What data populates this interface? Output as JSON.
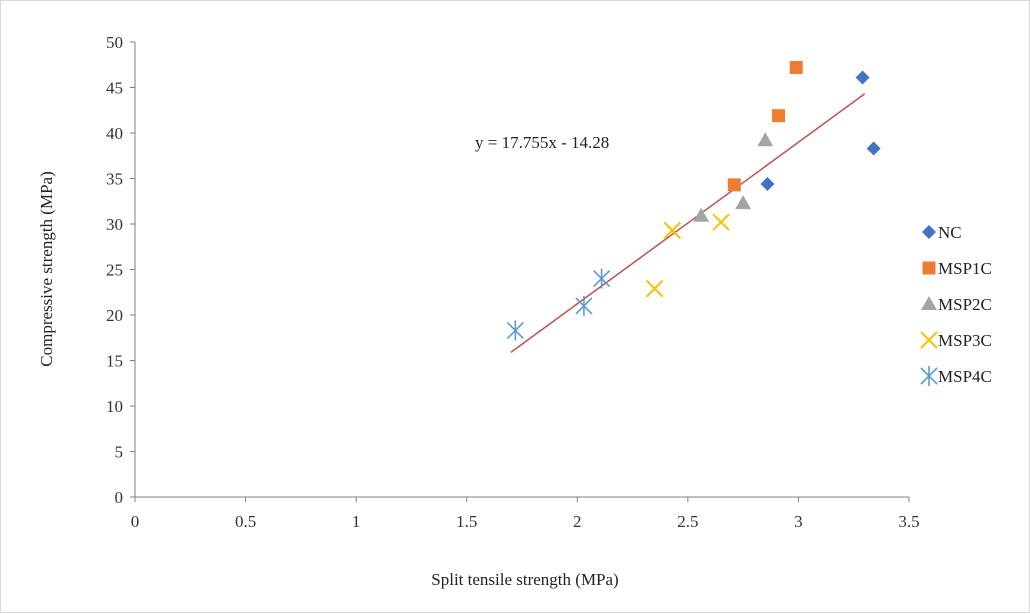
{
  "chart_data": {
    "type": "scatter",
    "title": "",
    "xlabel": "Split tensile strength (MPa)",
    "ylabel": "Compressive strength (MPa)",
    "xlim": [
      0,
      3.5
    ],
    "ylim": [
      0,
      50
    ],
    "xticks": [
      "0",
      "0.5",
      "1",
      "1.5",
      "2",
      "2.5",
      "3",
      "3.5"
    ],
    "yticks": [
      "0",
      "5",
      "10",
      "15",
      "20",
      "25",
      "30",
      "35",
      "40",
      "45",
      "50"
    ],
    "grid": false,
    "legend_position": "right",
    "series": [
      {
        "name": "NC",
        "marker": "diamond",
        "color": "#4472C4",
        "points": [
          [
            2.86,
            34.4
          ],
          [
            3.29,
            46.1
          ],
          [
            3.34,
            38.3
          ]
        ]
      },
      {
        "name": "MSP1C",
        "marker": "square",
        "color": "#ED7D31",
        "points": [
          [
            2.71,
            34.3
          ],
          [
            2.91,
            41.9
          ],
          [
            2.99,
            47.2
          ]
        ]
      },
      {
        "name": "MSP2C",
        "marker": "triangle",
        "color": "#A5A5A5",
        "points": [
          [
            2.56,
            30.9
          ],
          [
            2.75,
            32.3
          ],
          [
            2.85,
            39.2
          ]
        ]
      },
      {
        "name": "MSP3C",
        "marker": "x",
        "color": "#FFC000",
        "points": [
          [
            2.35,
            22.9
          ],
          [
            2.43,
            29.3
          ],
          [
            2.65,
            30.2
          ]
        ]
      },
      {
        "name": "MSP4C",
        "marker": "asterisk",
        "color": "#5B9BD5",
        "points": [
          [
            1.72,
            18.3
          ],
          [
            2.03,
            21.0
          ],
          [
            2.11,
            24.0
          ]
        ]
      }
    ],
    "trendline": {
      "equation": "y = 17.755x - 14.28",
      "slope": 17.755,
      "intercept": -14.28,
      "x_range": [
        1.7,
        3.3
      ],
      "color": "#C0504D"
    }
  }
}
